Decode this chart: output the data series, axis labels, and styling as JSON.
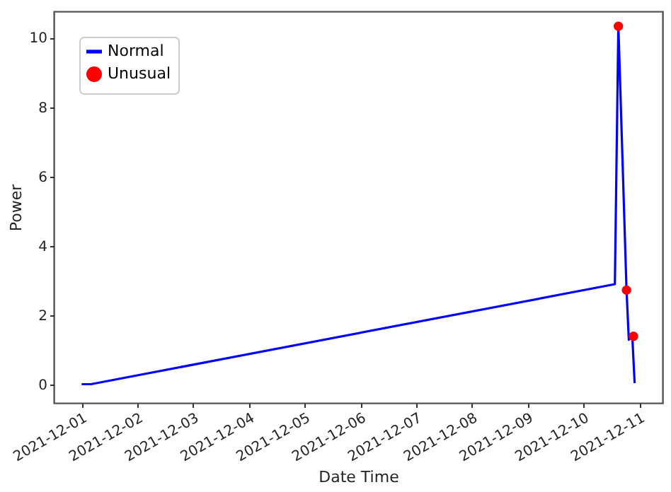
{
  "chart_data": {
    "type": "line",
    "xlabel": "Date Time",
    "ylabel": "Power",
    "xlim": [
      "2021-11-30T12:00",
      "2021-12-11T10:00"
    ],
    "xticks": [
      "2021-12-01",
      "2021-12-02",
      "2021-12-03",
      "2021-12-04",
      "2021-12-05",
      "2021-12-06",
      "2021-12-07",
      "2021-12-08",
      "2021-12-09",
      "2021-12-10",
      "2021-12-11"
    ],
    "ylim": [
      -0.52,
      10.76
    ],
    "yticks": [
      0,
      2,
      4,
      6,
      8,
      10
    ],
    "grid": false,
    "legend": "top left",
    "series": [
      {
        "name": "Normal",
        "color": "#0000ff",
        "marker": "none",
        "x": [
          "2021-12-01T00:00",
          "2021-12-01T04:00",
          "2021-12-10T13:30",
          "2021-12-10T15:00",
          "2021-12-10T18:30",
          "2021-12-10T19:30",
          "2021-12-10T21:00",
          "2021-12-10T22:00"
        ],
        "values": [
          0.02,
          0.02,
          2.9,
          10.35,
          2.75,
          1.3,
          1.4,
          0.05
        ]
      },
      {
        "name": "Unusual",
        "type": "scatter",
        "color": "#ff0000",
        "marker": "circle",
        "x": [
          "2021-12-10T15:00",
          "2021-12-10T18:30",
          "2021-12-10T21:30"
        ],
        "values": [
          10.33,
          2.73,
          1.4
        ]
      }
    ]
  }
}
